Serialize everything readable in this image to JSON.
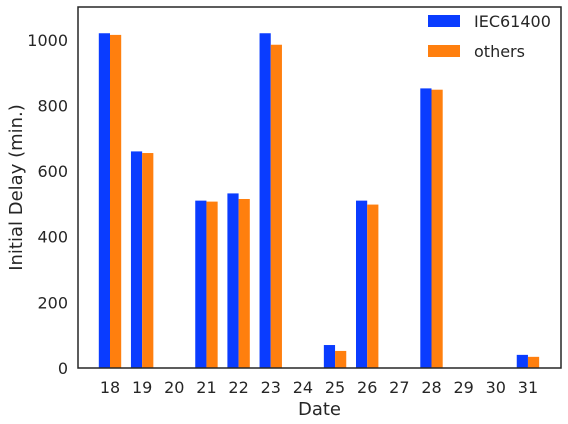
{
  "chart_data": {
    "type": "bar",
    "title": "",
    "xlabel": "Date",
    "ylabel": "Initial Delay (min.)",
    "categories": [
      "18",
      "19",
      "20",
      "21",
      "22",
      "23",
      "24",
      "25",
      "26",
      "27",
      "28",
      "29",
      "30",
      "31"
    ],
    "series": [
      {
        "name": "IEC61400",
        "color": "#0a3cff",
        "values": [
          1020,
          660,
          0,
          510,
          532,
          1020,
          0,
          70,
          510,
          0,
          852,
          0,
          0,
          40
        ]
      },
      {
        "name": "others",
        "color": "#ff7f0e",
        "values": [
          1015,
          655,
          0,
          507,
          515,
          985,
          0,
          52,
          498,
          0,
          848,
          0,
          0,
          34
        ]
      }
    ],
    "ylim": [
      0,
      1100
    ],
    "yticks": [
      0,
      200,
      400,
      600,
      800,
      1000
    ],
    "grid": false,
    "legend_position": "top-right"
  }
}
